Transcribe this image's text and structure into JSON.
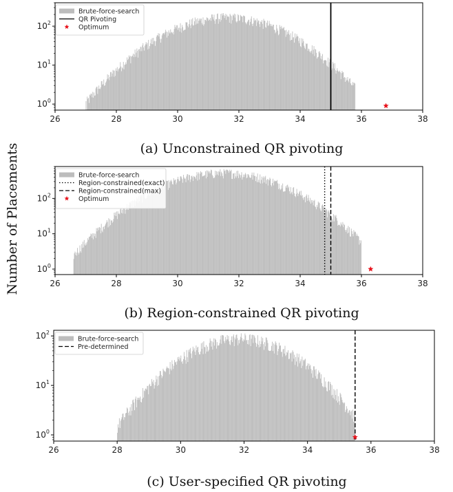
{
  "ylabel": "Number of Placements",
  "chart_data": [
    {
      "type": "bar",
      "caption": "(a) Unconstrained QR pivoting",
      "xlim": [
        26,
        38
      ],
      "xticks": [
        "26",
        "28",
        "30",
        "32",
        "34",
        "36",
        "38"
      ],
      "yscale": "log",
      "ylim": [
        0.7,
        400
      ],
      "yticks": [
        {
          "value": 1,
          "base": "10",
          "exp": "0"
        },
        {
          "value": 10,
          "base": "10",
          "exp": "1"
        },
        {
          "value": 100,
          "base": "10",
          "exp": "2"
        }
      ],
      "histogram": {
        "name": "Brute-force-search",
        "color": "#bdbdbd",
        "center": 31.6,
        "sigma": 1.45,
        "peak": 190,
        "range": [
          27.0,
          35.8
        ],
        "bin_width": 0.02
      },
      "vlines": [
        {
          "name": "QR Pivoting",
          "x": 35.0,
          "style": "solid",
          "color": "#000000"
        }
      ],
      "points": [
        {
          "name": "Optimum",
          "x": 36.8,
          "y": 0.9,
          "color": "#e8121b"
        }
      ],
      "legend": [
        {
          "label": "Brute-force-search",
          "marker": "patch"
        },
        {
          "label": "QR Pivoting",
          "marker": "solid"
        },
        {
          "label": "Optimum",
          "marker": "star"
        }
      ]
    },
    {
      "type": "bar",
      "caption": "(b) Region-constrained QR pivoting",
      "xlim": [
        26,
        38
      ],
      "xticks": [
        "26",
        "28",
        "30",
        "32",
        "34",
        "36",
        "38"
      ],
      "yscale": "log",
      "ylim": [
        0.7,
        800
      ],
      "yticks": [
        {
          "value": 1,
          "base": "10",
          "exp": "0"
        },
        {
          "value": 10,
          "base": "10",
          "exp": "1"
        },
        {
          "value": 100,
          "base": "10",
          "exp": "2"
        }
      ],
      "histogram": {
        "name": "Brute-force-search",
        "color": "#bdbdbd",
        "center": 31.5,
        "sigma": 1.5,
        "peak": 600,
        "range": [
          26.6,
          36.0
        ],
        "bin_width": 0.02
      },
      "vlines": [
        {
          "name": "Region-constrained(exact)",
          "x": 34.8,
          "style": "dotted",
          "color": "#000000"
        },
        {
          "name": "Region-constrained(max)",
          "x": 35.0,
          "style": "dashed",
          "color": "#000000"
        }
      ],
      "points": [
        {
          "name": "Optimum",
          "x": 36.3,
          "y": 1.0,
          "color": "#e8121b"
        }
      ],
      "legend": [
        {
          "label": "Brute-force-search",
          "marker": "patch"
        },
        {
          "label": "Region-constrained(exact)",
          "marker": "dotted"
        },
        {
          "label": "Region-constrained(max)",
          "marker": "dashed"
        },
        {
          "label": "Optimum",
          "marker": "star"
        }
      ]
    },
    {
      "type": "bar",
      "caption": "(c) User-specified QR pivoting",
      "xlim": [
        26,
        38
      ],
      "xticks": [
        "26",
        "28",
        "30",
        "32",
        "34",
        "36",
        "38"
      ],
      "yscale": "log",
      "ylim": [
        0.75,
        130
      ],
      "yticks": [
        {
          "value": 1,
          "base": "10",
          "exp": "0"
        },
        {
          "value": 10,
          "base": "10",
          "exp": "1"
        },
        {
          "value": 100,
          "base": "10",
          "exp": "2"
        }
      ],
      "histogram": {
        "name": "Brute-force-search",
        "color": "#bdbdbd",
        "center": 31.85,
        "sigma": 1.35,
        "peak": 100,
        "range": [
          28.0,
          35.5
        ],
        "bin_width": 0.02
      },
      "vlines": [
        {
          "name": "Pre-determined",
          "x": 35.5,
          "style": "dashed",
          "color": "#000000"
        }
      ],
      "points": [
        {
          "name": "Optimum",
          "x": 35.5,
          "y": 0.9,
          "color": "#e8121b"
        }
      ],
      "legend": [
        {
          "label": "Brute-force-search",
          "marker": "patch"
        },
        {
          "label": "Pre-determined",
          "marker": "dashed"
        }
      ]
    }
  ]
}
